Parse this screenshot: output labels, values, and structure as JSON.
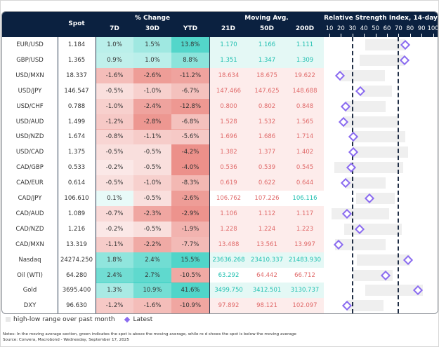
{
  "header": {
    "spot": "Spot",
    "pct_change": "% Change",
    "pct_cols": [
      "7D",
      "30D",
      "YTD"
    ],
    "moving_avg": "Moving Avg.",
    "ma_cols": [
      "21D",
      "50D",
      "200D"
    ],
    "rsi_title": "Relative Strength Index, 14-day",
    "rsi_ticks": [
      "10",
      "20",
      "30",
      "40",
      "50",
      "60",
      "70",
      "80",
      "90",
      "100"
    ]
  },
  "colors": {
    "header_bg": "#0b2140",
    "up_text": "#1fbfb0",
    "down_text": "#e06a6a",
    "marker": "#8b6cf0",
    "range_bar": "#efefef"
  },
  "rows": [
    {
      "name": "EUR/USD",
      "spot": "1.184",
      "d7": "1.0%",
      "d30": "1.5%",
      "ytd": "13.8%",
      "ma21": "1.170",
      "ma50": "1.166",
      "ma200": "1.111",
      "ma_dir": [
        "up",
        "up",
        "up"
      ]
    },
    {
      "name": "GBP/USD",
      "spot": "1.365",
      "d7": "0.9%",
      "d30": "1.0%",
      "ytd": "8.8%",
      "ma21": "1.351",
      "ma50": "1.347",
      "ma200": "1.309",
      "ma_dir": [
        "up",
        "up",
        "up"
      ]
    },
    {
      "name": "USD/MXN",
      "spot": "18.337",
      "d7": "-1.6%",
      "d30": "-2.6%",
      "ytd": "-11.2%",
      "ma21": "18.634",
      "ma50": "18.675",
      "ma200": "19.622",
      "ma_dir": [
        "down",
        "down",
        "down"
      ]
    },
    {
      "name": "USD/JPY",
      "spot": "146.547",
      "d7": "-0.5%",
      "d30": "-1.0%",
      "ytd": "-6.7%",
      "ma21": "147.466",
      "ma50": "147.625",
      "ma200": "148.688",
      "ma_dir": [
        "down",
        "down",
        "down"
      ]
    },
    {
      "name": "USD/CHF",
      "spot": "0.788",
      "d7": "-1.0%",
      "d30": "-2.4%",
      "ytd": "-12.8%",
      "ma21": "0.800",
      "ma50": "0.802",
      "ma200": "0.848",
      "ma_dir": [
        "down",
        "down",
        "down"
      ]
    },
    {
      "name": "USD/AUD",
      "spot": "1.499",
      "d7": "-1.2%",
      "d30": "-2.8%",
      "ytd": "-6.8%",
      "ma21": "1.528",
      "ma50": "1.532",
      "ma200": "1.565",
      "ma_dir": [
        "down",
        "down",
        "down"
      ]
    },
    {
      "name": "USD/NZD",
      "spot": "1.674",
      "d7": "-0.8%",
      "d30": "-1.1%",
      "ytd": "-5.6%",
      "ma21": "1.696",
      "ma50": "1.686",
      "ma200": "1.714",
      "ma_dir": [
        "down",
        "down",
        "down"
      ]
    },
    {
      "name": "USD/CAD",
      "spot": "1.375",
      "d7": "-0.5%",
      "d30": "-0.5%",
      "ytd": "-4.2%",
      "ma21": "1.382",
      "ma50": "1.377",
      "ma200": "1.402",
      "ma_dir": [
        "down",
        "down",
        "down"
      ]
    },
    {
      "name": "CAD/GBP",
      "spot": "0.533",
      "d7": "-0.2%",
      "d30": "-0.5%",
      "ytd": "-4.0%",
      "ma21": "0.536",
      "ma50": "0.539",
      "ma200": "0.545",
      "ma_dir": [
        "down",
        "down",
        "down"
      ]
    },
    {
      "name": "CAD/EUR",
      "spot": "0.614",
      "d7": "-0.5%",
      "d30": "-1.0%",
      "ytd": "-8.3%",
      "ma21": "0.619",
      "ma50": "0.622",
      "ma200": "0.644",
      "ma_dir": [
        "down",
        "down",
        "down"
      ]
    },
    {
      "name": "CAD/JPY",
      "spot": "106.610",
      "d7": "0.1%",
      "d30": "-0.5%",
      "ytd": "-2.6%",
      "ma21": "106.762",
      "ma50": "107.226",
      "ma200": "106.116",
      "ma_dir": [
        "down",
        "down",
        "up"
      ]
    },
    {
      "name": "CAD/AUD",
      "spot": "1.089",
      "d7": "-0.7%",
      "d30": "-2.3%",
      "ytd": "-2.9%",
      "ma21": "1.106",
      "ma50": "1.112",
      "ma200": "1.117",
      "ma_dir": [
        "down",
        "down",
        "down"
      ]
    },
    {
      "name": "CAD/NZD",
      "spot": "1.216",
      "d7": "-0.2%",
      "d30": "-0.5%",
      "ytd": "-1.9%",
      "ma21": "1.228",
      "ma50": "1.224",
      "ma200": "1.223",
      "ma_dir": [
        "down",
        "down",
        "down"
      ]
    },
    {
      "name": "CAD/MXN",
      "spot": "13.319",
      "d7": "-1.1%",
      "d30": "-2.2%",
      "ytd": "-7.7%",
      "ma21": "13.488",
      "ma50": "13.561",
      "ma200": "13.997",
      "ma_dir": [
        "down",
        "down",
        "down"
      ]
    },
    {
      "name": "Nasdaq",
      "spot": "24274.250",
      "d7": "1.8%",
      "d30": "2.4%",
      "ytd": "15.5%",
      "ma21": "23636.268",
      "ma50": "23410.337",
      "ma200": "21483.930",
      "ma_dir": [
        "up",
        "up",
        "up"
      ]
    },
    {
      "name": "Oil (WTI)",
      "spot": "64.280",
      "d7": "2.4%",
      "d30": "2.7%",
      "ytd": "-10.5%",
      "ma21": "63.292",
      "ma50": "64.442",
      "ma200": "66.712",
      "ma_dir": [
        "up",
        "down",
        "down"
      ]
    },
    {
      "name": "Gold",
      "spot": "3695.400",
      "d7": "1.3%",
      "d30": "10.9%",
      "ytd": "41.6%",
      "ma21": "3499.750",
      "ma50": "3412.501",
      "ma200": "3130.737",
      "ma_dir": [
        "up",
        "up",
        "up"
      ]
    },
    {
      "name": "DXY",
      "spot": "96.630",
      "d7": "-1.2%",
      "d30": "-1.6%",
      "ytd": "-10.9%",
      "ma21": "97.892",
      "ma50": "98.121",
      "ma200": "102.097",
      "ma_dir": [
        "down",
        "down",
        "down"
      ]
    }
  ],
  "chart_data": {
    "type": "table",
    "title": "Relative Strength Index, 14-day",
    "xlim": [
      10,
      100
    ],
    "xticks": [
      10,
      20,
      30,
      40,
      50,
      60,
      70,
      80,
      90,
      100
    ],
    "reference_lines": [
      30,
      70
    ],
    "legend": "bottom-left",
    "categories": [
      "EUR/USD",
      "GBP/USD",
      "USD/MXN",
      "USD/JPY",
      "USD/CHF",
      "USD/AUD",
      "USD/NZD",
      "USD/CAD",
      "CAD/GBP",
      "CAD/EUR",
      "CAD/JPY",
      "CAD/AUD",
      "CAD/NZD",
      "CAD/MXN",
      "Nasdaq",
      "Oil (WTI)",
      "Gold",
      "DXY"
    ],
    "series": [
      {
        "name": "high-low range over past month (low)",
        "values": [
          41,
          36,
          19,
          37,
          24,
          22,
          31,
          31,
          14,
          24,
          33,
          12,
          23,
          15,
          34,
          31,
          41,
          25
        ]
      },
      {
        "name": "high-low range over past month (high)",
        "values": [
          76,
          75,
          58,
          64,
          59,
          69,
          76,
          78,
          74,
          59,
          67,
          62,
          73,
          59,
          80,
          65,
          91,
          57
        ]
      },
      {
        "name": "Latest",
        "values": [
          76,
          75,
          19,
          37,
          24,
          22,
          31,
          31,
          29,
          24,
          45,
          25,
          36,
          18,
          78,
          59,
          87,
          25
        ]
      }
    ],
    "pct_change_columns": [
      "7D",
      "30D",
      "YTD"
    ],
    "moving_avg_columns": [
      "21D",
      "50D",
      "200D"
    ]
  },
  "legend": {
    "range_label": "high-low range over past month",
    "latest_label": "Latest"
  },
  "notes": "Notes: In the moving average section, green indicates the spot is above the moving average, while re   d shows the spot is below   the moving average",
  "source": "Source: Convera, Macrobond - Wednesday, September 17, 2025"
}
